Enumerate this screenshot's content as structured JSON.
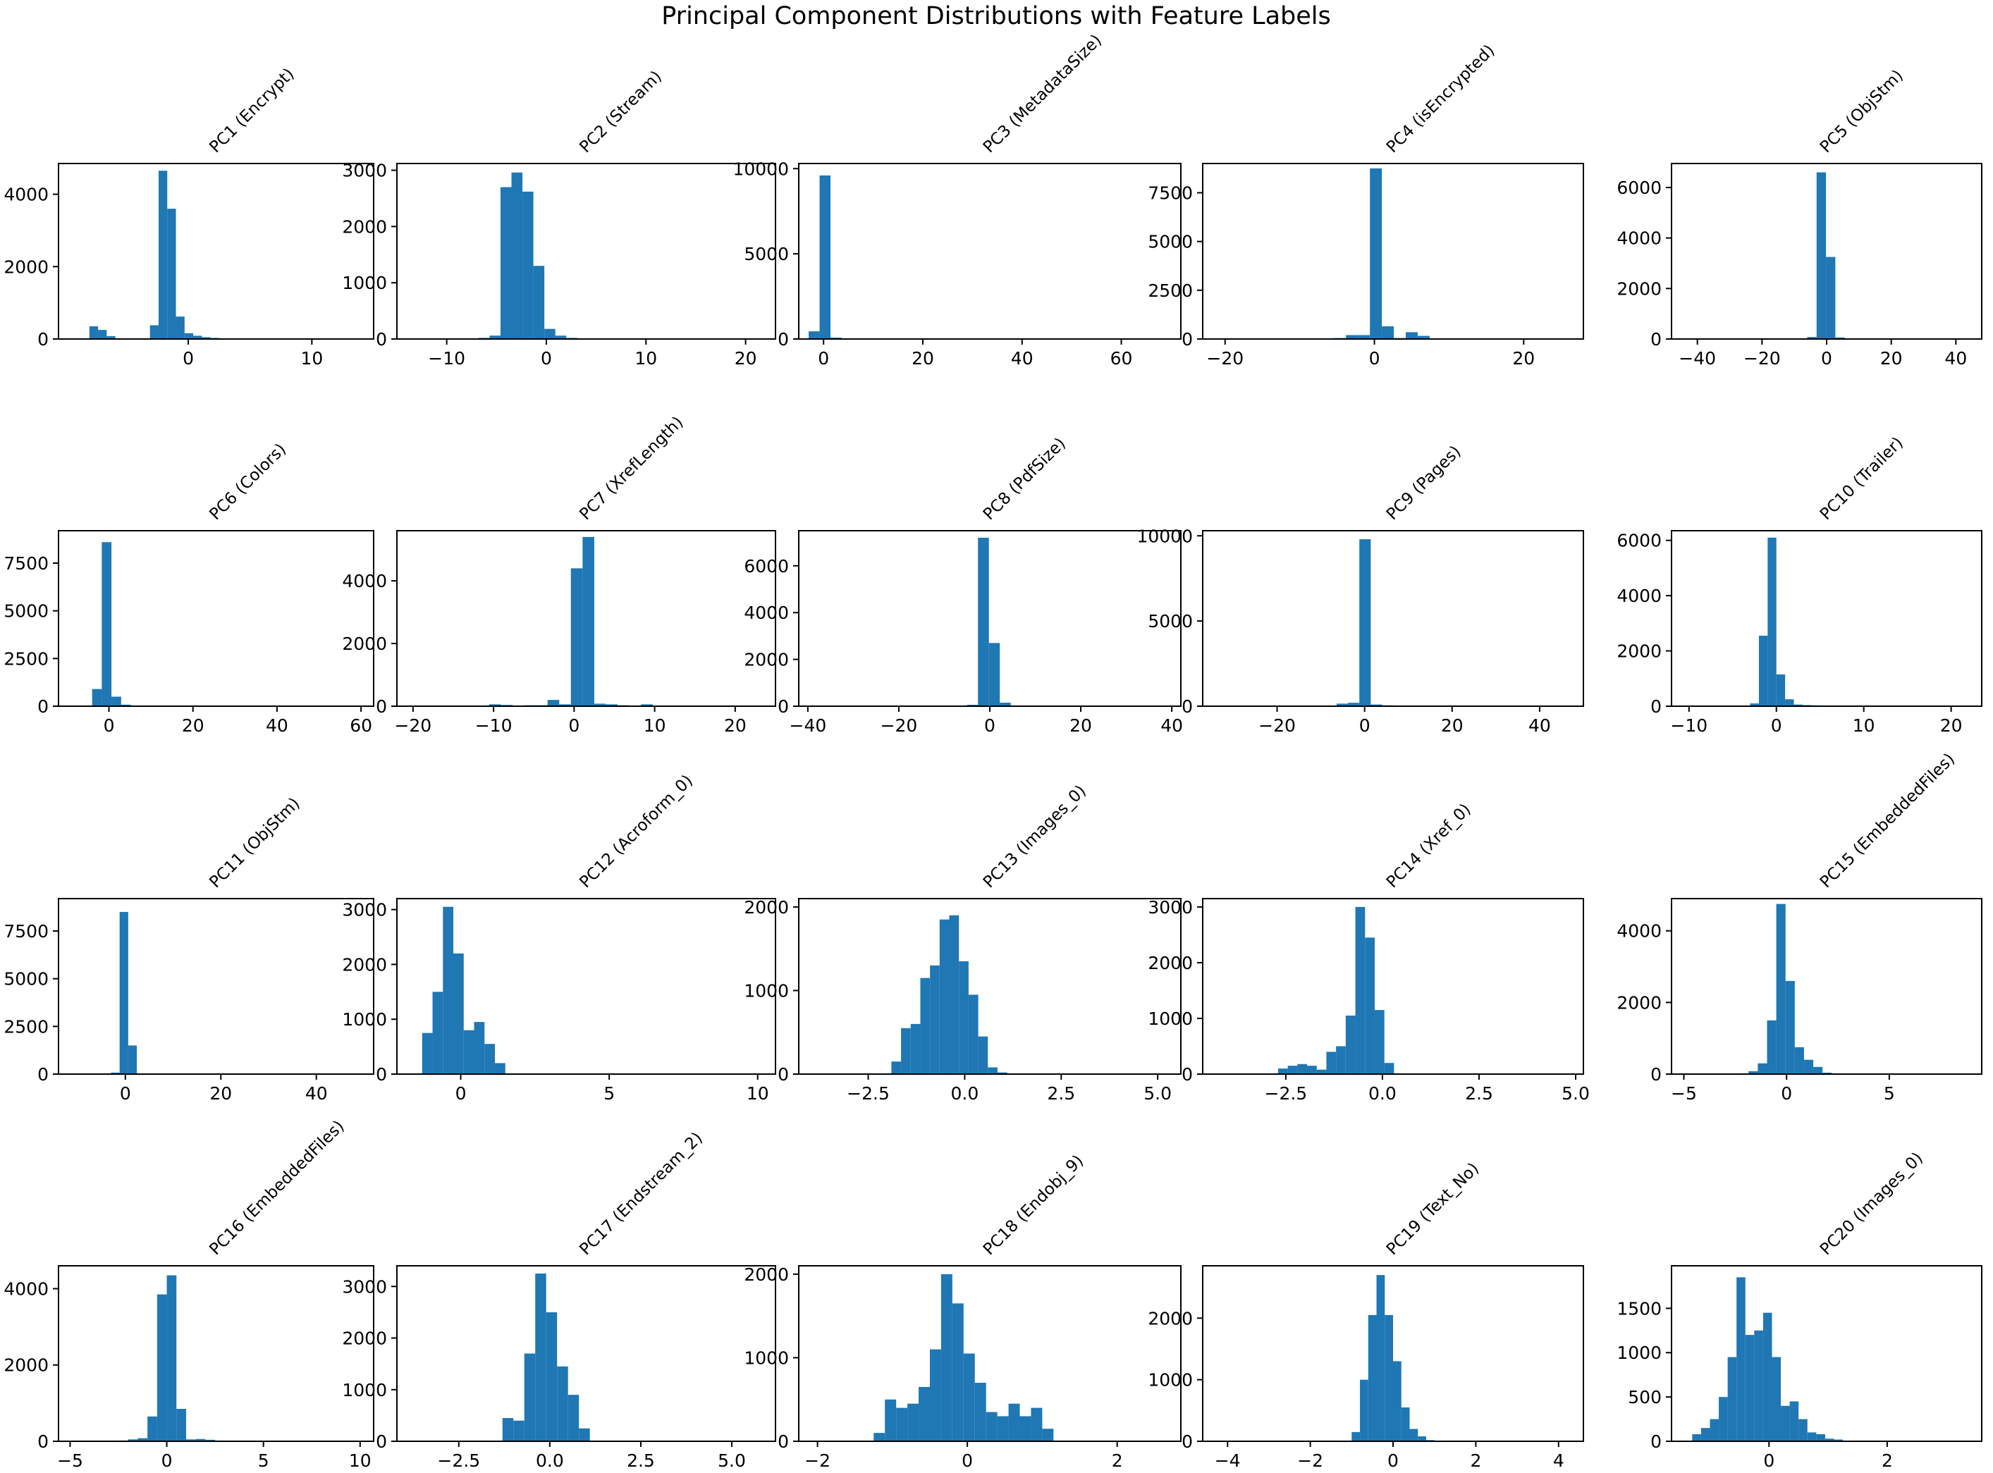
{
  "figure": {
    "title": "Principal Component Distributions with Feature Labels",
    "bar_color": "#1f77b4"
  },
  "chart_data": [
    {
      "type": "histogram",
      "title": "PC1 (Encrypt)",
      "xlim": [
        -10.5,
        15
      ],
      "ylim": [
        0,
        4850
      ],
      "xticks": [
        0,
        10
      ],
      "xticklabels": [
        "0",
        "10"
      ],
      "yticks": [
        0,
        2000,
        4000
      ],
      "yticklabels": [
        "0",
        "2000",
        "4000"
      ],
      "bin_start": -8,
      "bin_width": 0.7,
      "counts": [
        350,
        250,
        80,
        10,
        5,
        5,
        10,
        380,
        4650,
        3600,
        620,
        160,
        90,
        50,
        30,
        10
      ]
    },
    {
      "type": "histogram",
      "title": "PC2 (Stream)",
      "xlim": [
        -15,
        23
      ],
      "ylim": [
        0,
        3120
      ],
      "xticks": [
        -10,
        0,
        10,
        20
      ],
      "xticklabels": [
        "−10",
        "0",
        "10",
        "20"
      ],
      "yticks": [
        0,
        1000,
        2000,
        3000
      ],
      "yticklabels": [
        "0",
        "1000",
        "2000",
        "3000"
      ],
      "bin_start": -9,
      "bin_width": 1.1,
      "counts": [
        5,
        10,
        20,
        60,
        2700,
        2960,
        2620,
        1300,
        180,
        60,
        20,
        10
      ]
    },
    {
      "type": "histogram",
      "title": "PC3 (MetadataSize)",
      "xlim": [
        -5,
        72
      ],
      "ylim": [
        0,
        10300
      ],
      "xticks": [
        0,
        20,
        40,
        60
      ],
      "xticklabels": [
        "0",
        "20",
        "40",
        "60"
      ],
      "yticks": [
        0,
        5000,
        10000
      ],
      "yticklabels": [
        "0",
        "5000",
        "10000"
      ],
      "bin_start": -3,
      "bin_width": 2.2,
      "counts": [
        450,
        9600,
        80,
        20,
        10,
        5
      ]
    },
    {
      "type": "histogram",
      "title": "PC4 (isEncrypted)",
      "xlim": [
        -23,
        28
      ],
      "ylim": [
        0,
        9000
      ],
      "xticks": [
        -20,
        0,
        20
      ],
      "xticklabels": [
        "−20",
        "0",
        "20"
      ],
      "yticks": [
        0,
        2500,
        5000,
        7500
      ],
      "yticklabels": [
        "0",
        "2500",
        "5000",
        "7500"
      ],
      "bin_start": -7,
      "bin_width": 1.6,
      "counts": [
        20,
        50,
        200,
        200,
        8750,
        650,
        50,
        350,
        160,
        20
      ]
    },
    {
      "type": "histogram",
      "title": "PC5 (ObjStm)",
      "xlim": [
        -48,
        48
      ],
      "ylim": [
        0,
        6950
      ],
      "xticks": [
        -40,
        -20,
        0,
        20,
        40
      ],
      "xticklabels": [
        "−40",
        "−20",
        "0",
        "20",
        "40"
      ],
      "yticks": [
        0,
        2000,
        4000,
        6000
      ],
      "yticklabels": [
        "0",
        "2000",
        "4000",
        "6000"
      ],
      "bin_start": -6,
      "bin_width": 2.9,
      "counts": [
        80,
        6600,
        3250,
        60,
        10
      ]
    },
    {
      "type": "histogram",
      "title": "PC6 (Colors)",
      "xlim": [
        -12,
        63
      ],
      "ylim": [
        0,
        9200
      ],
      "xticks": [
        0,
        20,
        40,
        60
      ],
      "xticklabels": [
        "0",
        "20",
        "40",
        "60"
      ],
      "yticks": [
        0,
        2500,
        5000,
        7500
      ],
      "yticklabels": [
        "0",
        "2500",
        "5000",
        "7500"
      ],
      "bin_start": -4,
      "bin_width": 2.3,
      "counts": [
        900,
        8600,
        500,
        80,
        30,
        10,
        5
      ]
    },
    {
      "type": "histogram",
      "title": "PC7 (XrefLength)",
      "xlim": [
        -22,
        25
      ],
      "ylim": [
        0,
        5600
      ],
      "xticks": [
        -20,
        -10,
        0,
        10,
        20
      ],
      "xticklabels": [
        "−20",
        "−10",
        "0",
        "10",
        "20"
      ],
      "yticks": [
        0,
        2000,
        4000
      ],
      "yticklabels": [
        "0",
        "2000",
        "4000"
      ],
      "bin_start": -12,
      "bin_width": 1.45,
      "counts": [
        20,
        60,
        40,
        20,
        30,
        30,
        200,
        60,
        4400,
        5400,
        80,
        60,
        30,
        20,
        60,
        20
      ]
    },
    {
      "type": "histogram",
      "title": "PC8 (PdfSize)",
      "xlim": [
        -42,
        42
      ],
      "ylim": [
        0,
        7500
      ],
      "xticks": [
        -40,
        -20,
        0,
        20,
        40
      ],
      "xticklabels": [
        "−40",
        "−20",
        "0",
        "20",
        "40"
      ],
      "yticks": [
        0,
        2000,
        4000,
        6000
      ],
      "yticklabels": [
        "0",
        "2000",
        "4000",
        "6000"
      ],
      "bin_start": -5,
      "bin_width": 2.4,
      "counts": [
        60,
        7200,
        2700,
        150,
        30
      ]
    },
    {
      "type": "histogram",
      "title": "PC9 (Pages)",
      "xlim": [
        -37,
        50
      ],
      "ylim": [
        0,
        10300
      ],
      "xticks": [
        -20,
        0,
        20,
        40
      ],
      "xticklabels": [
        "−20",
        "0",
        "20",
        "40"
      ],
      "yticks": [
        0,
        5000,
        10000
      ],
      "yticklabels": [
        "0",
        "5000",
        "10000"
      ],
      "bin_start": -9,
      "bin_width": 2.6,
      "counts": [
        20,
        150,
        200,
        9800,
        100,
        50,
        20
      ]
    },
    {
      "type": "histogram",
      "title": "PC10 (Trailer)",
      "xlim": [
        -12,
        23.5
      ],
      "ylim": [
        0,
        6350
      ],
      "xticks": [
        -10,
        0,
        10,
        20
      ],
      "xticklabels": [
        "−10",
        "0",
        "10",
        "20"
      ],
      "yticks": [
        0,
        2000,
        4000,
        6000
      ],
      "yticklabels": [
        "0",
        "2000",
        "4000",
        "6000"
      ],
      "bin_start": -4,
      "bin_width": 1.0,
      "counts": [
        20,
        100,
        2550,
        6100,
        1150,
        250,
        60,
        40,
        30,
        20,
        10
      ]
    },
    {
      "type": "histogram",
      "title": "PC11 (ObjStm)",
      "xlim": [
        -14,
        52
      ],
      "ylim": [
        0,
        9200
      ],
      "xticks": [
        0,
        20,
        40
      ],
      "xticklabels": [
        "0",
        "20",
        "40"
      ],
      "yticks": [
        0,
        2500,
        5000,
        7500
      ],
      "yticklabels": [
        "0",
        "2500",
        "5000",
        "7500"
      ],
      "bin_start": -3,
      "bin_width": 1.8,
      "counts": [
        80,
        8500,
        1500,
        20
      ]
    },
    {
      "type": "histogram",
      "title": "PC12 (Acroform_0)",
      "xlim": [
        -2.15,
        10.6
      ],
      "ylim": [
        0,
        3200
      ],
      "xticks": [
        0,
        5,
        10
      ],
      "xticklabels": [
        "0",
        "5",
        "10"
      ],
      "yticks": [
        0,
        1000,
        2000,
        3000
      ],
      "yticklabels": [
        "0",
        "1000",
        "2000",
        "3000"
      ],
      "bin_start": -1.3,
      "bin_width": 0.35,
      "counts": [
        750,
        1500,
        3050,
        2200,
        800,
        950,
        550,
        200
      ]
    },
    {
      "type": "histogram",
      "title": "PC13 (Images_0)",
      "xlim": [
        -4.3,
        5.6
      ],
      "ylim": [
        0,
        2100
      ],
      "xticks": [
        -2.5,
        0,
        2.5,
        5
      ],
      "xticklabels": [
        "−2.5",
        "0.0",
        "2.5",
        "5.0"
      ],
      "yticks": [
        0,
        1000,
        2000
      ],
      "yticklabels": [
        "0",
        "1000",
        "2000"
      ],
      "bin_start": -1.9,
      "bin_width": 0.25,
      "counts": [
        150,
        550,
        600,
        1150,
        1300,
        1850,
        1900,
        1350,
        950,
        450,
        80,
        20
      ]
    },
    {
      "type": "histogram",
      "title": "PC14 (Xref_0)",
      "xlim": [
        -4.65,
        5.2
      ],
      "ylim": [
        0,
        3150
      ],
      "xticks": [
        -2.5,
        0,
        2.5,
        5
      ],
      "xticklabels": [
        "−2.5",
        "0.0",
        "2.5",
        "5.0"
      ],
      "yticks": [
        0,
        1000,
        2000,
        3000
      ],
      "yticklabels": [
        "0",
        "1000",
        "2000",
        "3000"
      ],
      "bin_start": -2.7,
      "bin_width": 0.25,
      "counts": [
        100,
        150,
        180,
        150,
        80,
        400,
        500,
        1050,
        3000,
        2450,
        1150,
        200
      ]
    },
    {
      "type": "histogram",
      "title": "PC15 (EmbeddedFiles)",
      "xlim": [
        -5.6,
        9.5
      ],
      "ylim": [
        0,
        4900
      ],
      "xticks": [
        -5,
        0,
        5
      ],
      "xticklabels": [
        "−5",
        "0",
        "5"
      ],
      "yticks": [
        0,
        2000,
        4000
      ],
      "yticklabels": [
        "0",
        "2000",
        "4000"
      ],
      "bin_start": -2.3,
      "bin_width": 0.45,
      "counts": [
        20,
        80,
        300,
        1500,
        4750,
        2600,
        750,
        400,
        200,
        40
      ]
    },
    {
      "type": "histogram",
      "title": "PC16 (EmbeddedFiles)",
      "xlim": [
        -5.6,
        10.7
      ],
      "ylim": [
        0,
        4600
      ],
      "xticks": [
        -5,
        0,
        5,
        10
      ],
      "xticklabels": [
        "−5",
        "0",
        "5",
        "10"
      ],
      "yticks": [
        0,
        2000,
        4000
      ],
      "yticklabels": [
        "0",
        "2000",
        "4000"
      ],
      "bin_start": -2.5,
      "bin_width": 0.5,
      "counts": [
        20,
        50,
        80,
        650,
        3850,
        4350,
        850,
        50,
        60,
        40,
        20,
        10
      ]
    },
    {
      "type": "histogram",
      "title": "PC17 (Endstream_2)",
      "xlim": [
        -4.2,
        6.2
      ],
      "ylim": [
        0,
        3400
      ],
      "xticks": [
        -2.5,
        0,
        2.5,
        5
      ],
      "xticklabels": [
        "−2.5",
        "0.0",
        "2.5",
        "5.0"
      ],
      "yticks": [
        0,
        1000,
        2000,
        3000
      ],
      "yticklabels": [
        "0",
        "1000",
        "2000",
        "3000"
      ],
      "bin_start": -1.3,
      "bin_width": 0.3,
      "counts": [
        450,
        400,
        1700,
        3250,
        2500,
        1450,
        900,
        250
      ]
    },
    {
      "type": "histogram",
      "title": "PC18 (Endobj_9)",
      "xlim": [
        -2.25,
        2.85
      ],
      "ylim": [
        0,
        2100
      ],
      "xticks": [
        -2,
        0,
        2
      ],
      "xticklabels": [
        "−2",
        "0",
        "2"
      ],
      "yticks": [
        0,
        1000,
        2000
      ],
      "yticklabels": [
        "0",
        "1000",
        "2000"
      ],
      "bin_start": -1.25,
      "bin_width": 0.15,
      "counts": [
        100,
        500,
        400,
        450,
        650,
        1100,
        2000,
        1650,
        1050,
        700,
        350,
        300,
        450,
        300,
        400,
        150
      ]
    },
    {
      "type": "histogram",
      "title": "PC19 (Text_No)",
      "xlim": [
        -4.6,
        4.6
      ],
      "ylim": [
        0,
        2850
      ],
      "xticks": [
        -4,
        -2,
        0,
        2,
        4
      ],
      "xticklabels": [
        "−4",
        "−2",
        "0",
        "2",
        "4"
      ],
      "yticks": [
        0,
        1000,
        2000
      ],
      "yticklabels": [
        "0",
        "1000",
        "2000"
      ],
      "bin_start": -1.0,
      "bin_width": 0.2,
      "counts": [
        150,
        1000,
        2050,
        2700,
        2050,
        1300,
        550,
        200,
        80,
        20
      ]
    },
    {
      "type": "histogram",
      "title": "PC20 (Images_0)",
      "xlim": [
        -1.65,
        3.6
      ],
      "ylim": [
        0,
        1980
      ],
      "xticks": [
        0,
        2
      ],
      "xticklabels": [
        "0",
        "2"
      ],
      "yticks": [
        0,
        500,
        1000,
        1500
      ],
      "yticklabels": [
        "0",
        "500",
        "1000",
        "1500"
      ],
      "bin_start": -1.3,
      "bin_width": 0.15,
      "counts": [
        80,
        150,
        250,
        500,
        950,
        1850,
        1200,
        1250,
        1450,
        950,
        400,
        450,
        250,
        100,
        80,
        30,
        20
      ]
    }
  ]
}
